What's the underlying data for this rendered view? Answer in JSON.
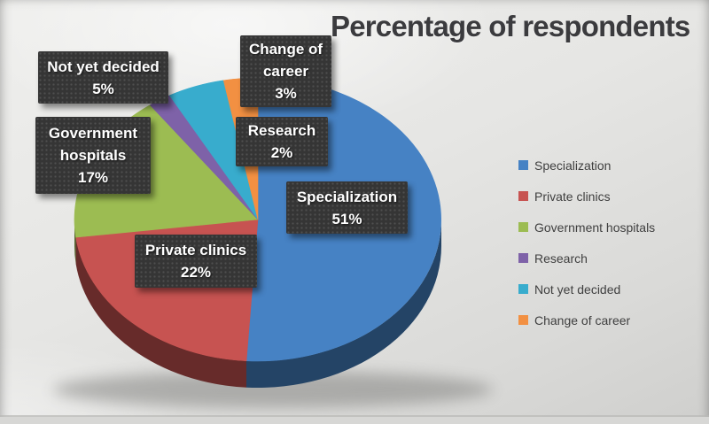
{
  "title": "Percentage of respondents",
  "chart_data": {
    "type": "pie",
    "title": "Percentage of respondents",
    "unit": "%",
    "effect": "3d",
    "legend_position": "right",
    "start_angle_deg": 0,
    "direction": "clockwise",
    "slices": [
      {
        "label": "Specialization",
        "value": 51,
        "pct_label": "51%",
        "color": "#4682c4"
      },
      {
        "label": "Private clinics",
        "value": 22,
        "pct_label": "22%",
        "color": "#c75351"
      },
      {
        "label": "Government hospitals",
        "value": 17,
        "pct_label": "17%",
        "color": "#9cbc52"
      },
      {
        "label": "Research",
        "value": 2,
        "pct_label": "2%",
        "color": "#7e62a8"
      },
      {
        "label": "Not yet decided",
        "value": 5,
        "pct_label": "5%",
        "color": "#38accd"
      },
      {
        "label": "Change of career",
        "value": 3,
        "pct_label": "3%",
        "color": "#f29042"
      }
    ],
    "callout_label_bg": "#353535",
    "callout_text_color": "#ffffff",
    "title_color": "#3b3b3e",
    "legend_text_color": "#3f3f3f"
  }
}
